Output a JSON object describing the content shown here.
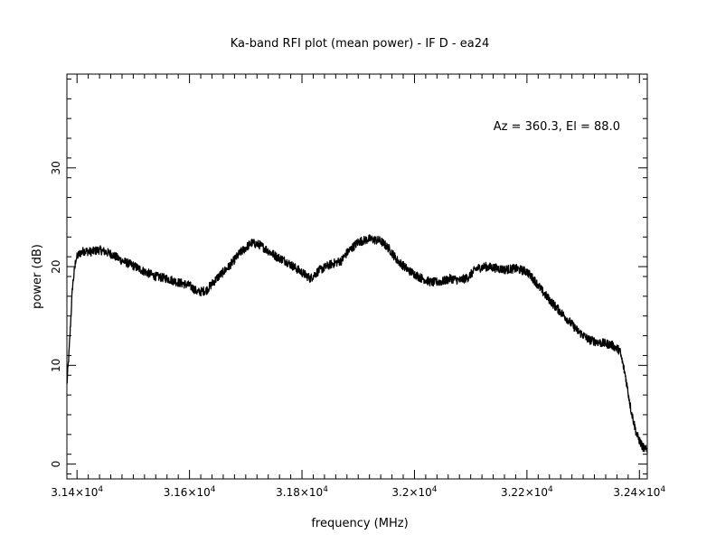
{
  "chart_data": {
    "type": "line",
    "title": "Ka-band RFI plot (mean power) - IF D - ea24",
    "xlabel": "frequency (MHz)",
    "ylabel": "power (dB)",
    "annotation": "Az = 360.3, El = 88.0",
    "xlim": [
      31382,
      32414
    ],
    "ylim": [
      -1.5,
      39.5
    ],
    "x_ticks": [
      {
        "value": 31400,
        "label": "3.14×10",
        "exp": "4"
      },
      {
        "value": 31600,
        "label": "3.16×10",
        "exp": "4"
      },
      {
        "value": 31800,
        "label": "3.18×10",
        "exp": "4"
      },
      {
        "value": 32000,
        "label": "3.2×10",
        "exp": "4"
      },
      {
        "value": 32200,
        "label": "3.22×10",
        "exp": "4"
      },
      {
        "value": 32400,
        "label": "3.24×10",
        "exp": "4"
      }
    ],
    "y_ticks": [
      {
        "value": 0,
        "label": "0"
      },
      {
        "value": 10,
        "label": "10"
      },
      {
        "value": 20,
        "label": "20"
      },
      {
        "value": 30,
        "label": "30"
      }
    ],
    "grid": false,
    "series": [
      {
        "x": [
          31382,
          31386,
          31392,
          31398,
          31404,
          31412,
          31425,
          31440,
          31460,
          31480,
          31500,
          31520,
          31540,
          31560,
          31580,
          31600,
          31615,
          31630,
          31650,
          31670,
          31690,
          31710,
          31725,
          31740,
          31755,
          31770,
          31785,
          31800,
          31815,
          31830,
          31850,
          31870,
          31880,
          31900,
          31920,
          31940,
          31955,
          31970,
          31990,
          32010,
          32030,
          32050,
          32065,
          32080,
          32095,
          32110,
          32125,
          32140,
          32160,
          32180,
          32200,
          32215,
          32230,
          32250,
          32270,
          32290,
          32310,
          32330,
          32350,
          32365,
          32375,
          32385,
          32395,
          32405,
          32414
        ],
        "y": [
          8.0,
          11.5,
          18.0,
          20.8,
          21.3,
          21.6,
          21.5,
          21.7,
          21.3,
          20.6,
          20.1,
          19.5,
          19.0,
          18.8,
          18.4,
          18.1,
          17.4,
          17.6,
          18.9,
          20.0,
          21.4,
          22.4,
          22.2,
          21.6,
          21.0,
          20.6,
          20.0,
          19.4,
          18.8,
          19.6,
          20.2,
          20.6,
          21.4,
          22.5,
          22.8,
          22.6,
          21.8,
          20.6,
          19.6,
          18.9,
          18.4,
          18.5,
          18.8,
          18.6,
          18.9,
          19.8,
          20.0,
          19.9,
          19.7,
          19.8,
          19.5,
          18.5,
          17.3,
          16.0,
          14.8,
          13.5,
          12.6,
          12.3,
          12.1,
          11.5,
          9.0,
          5.5,
          3.0,
          1.8,
          1.3
        ]
      }
    ]
  }
}
